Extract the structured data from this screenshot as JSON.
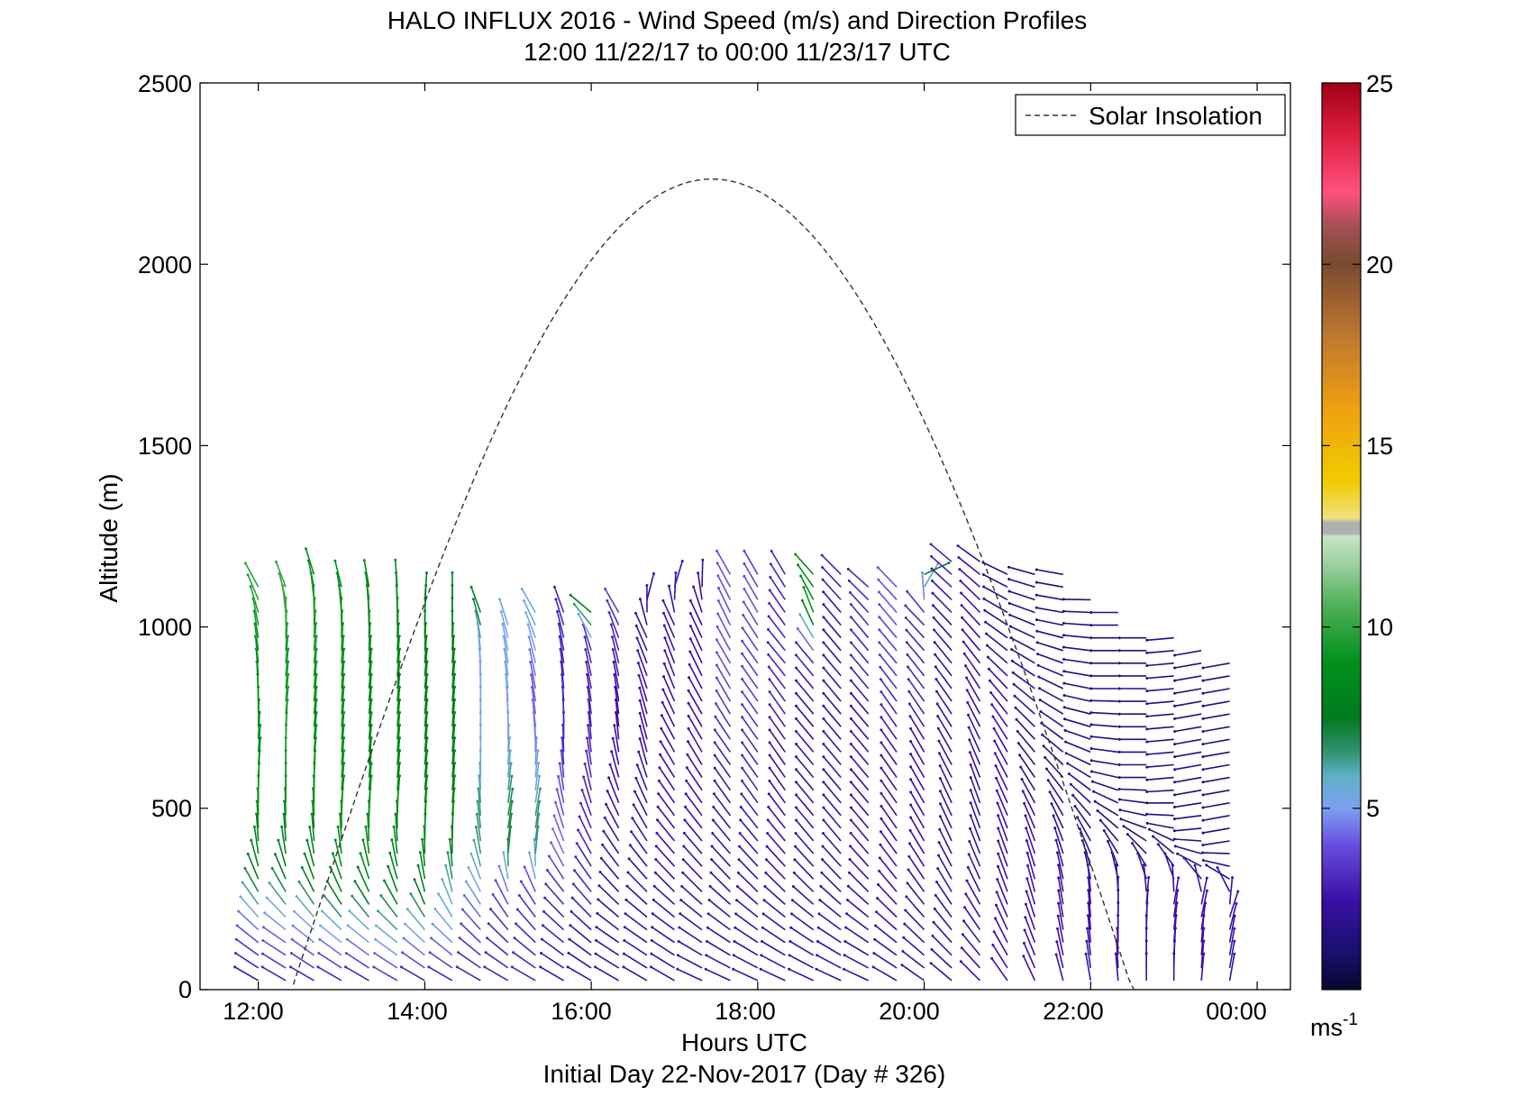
{
  "chart_data": {
    "type": "quiver",
    "title": "HALO INFLUX 2016 - Wind Speed (m/s) and Direction Profiles",
    "subtitle": "12:00 11/22/17 to 00:00 11/23/17  UTC",
    "xlabel": "Hours UTC",
    "xsublabel": "Initial Day 22-Nov-2017 (Day # 326)",
    "ylabel": "Altitude (m)",
    "xlim": [
      11.3,
      24.4
    ],
    "ylim": [
      0,
      2500
    ],
    "xticks": [
      12,
      14,
      16,
      18,
      20,
      22,
      24
    ],
    "xtick_labels": [
      "12:00",
      "14:00",
      "16:00",
      "18:00",
      "20:00",
      "22:00",
      "00:00"
    ],
    "yticks": [
      0,
      500,
      1000,
      1500,
      2000,
      2500
    ],
    "ytick_labels": [
      "0",
      "500",
      "1000",
      "1500",
      "2000",
      "2500"
    ],
    "legend": {
      "entries": [
        "Solar Insolation"
      ],
      "placement": "top-right",
      "style": "dashed"
    },
    "colorbar": {
      "range": [
        0,
        25
      ],
      "ticks": [
        5,
        10,
        15,
        20,
        25
      ],
      "tick_labels": [
        "5",
        "10",
        "15",
        "20",
        "25"
      ],
      "unit_label": "ms",
      "unit_exponent": "-1"
    },
    "solar_insolation": {
      "rise_hour": 12.42,
      "set_hour": 22.52,
      "peak_hour": 17.45,
      "peak_altitude": 2235
    },
    "wind_profiles": {
      "hours": [
        12.0,
        12.33,
        12.67,
        13.0,
        13.33,
        13.67,
        14.0,
        14.33,
        14.67,
        15.0,
        15.33,
        15.67,
        16.0,
        16.33,
        16.67,
        17.0,
        17.33,
        17.67,
        18.0,
        18.33,
        18.67,
        19.0,
        19.33,
        19.67,
        20.0,
        20.33,
        20.67,
        21.0,
        21.33,
        21.67,
        22.0,
        22.33,
        22.67,
        23.0,
        23.33,
        23.67
      ],
      "top_altitudes": [
        1120,
        1130,
        1160,
        1120,
        1110,
        1130,
        1100,
        1090,
        1040,
        1030,
        1040,
        1040,
        1040,
        1040,
        1100,
        1130,
        1140,
        1150,
        1160,
        1160,
        1160,
        1150,
        1130,
        1140,
        1160,
        1180,
        1190,
        1170,
        1160,
        1150,
        1100,
        1060,
        1000,
        1000,
        950,
        900
      ],
      "speeds_ms": [
        [
          2.5,
          4.0,
          7.0,
          8.5,
          9.0,
          9.0,
          9.0,
          9.0,
          9.5,
          10.0
        ],
        [
          3.0,
          4.5,
          7.0,
          8.5,
          9.0,
          9.5,
          9.5,
          9.5,
          10.0,
          10.0
        ],
        [
          3.0,
          5.0,
          7.5,
          8.5,
          8.5,
          9.0,
          9.0,
          9.5,
          9.5,
          9.0
        ],
        [
          3.0,
          5.5,
          8.0,
          9.0,
          9.0,
          9.0,
          9.0,
          9.0,
          9.0,
          9.0
        ],
        [
          3.0,
          5.5,
          8.0,
          9.0,
          9.0,
          8.5,
          8.5,
          8.5,
          8.5,
          8.5
        ],
        [
          3.5,
          6.0,
          8.0,
          8.5,
          8.5,
          8.5,
          8.5,
          8.5,
          8.5,
          8.5
        ],
        [
          3.0,
          5.5,
          8.0,
          8.5,
          8.5,
          8.0,
          8.0,
          8.0,
          8.0,
          8.0
        ],
        [
          3.0,
          5.0,
          6.0,
          8.0,
          8.0,
          8.0,
          8.0,
          8.0,
          8.0,
          8.0
        ],
        [
          3.0,
          3.5,
          5.0,
          6.5,
          6.5,
          5.5,
          5.0,
          5.0,
          5.0,
          8.0
        ],
        [
          3.0,
          3.0,
          4.0,
          7.0,
          7.0,
          6.0,
          5.0,
          5.0,
          5.0,
          5.5
        ],
        [
          3.0,
          3.0,
          3.5,
          6.5,
          6.5,
          5.0,
          4.5,
          4.0,
          5.0,
          5.5
        ],
        [
          2.5,
          3.0,
          3.0,
          4.5,
          4.0,
          3.5,
          3.0,
          3.0,
          3.0,
          3.0
        ],
        [
          2.5,
          2.5,
          3.0,
          3.0,
          3.0,
          3.0,
          3.0,
          3.0,
          3.0,
          8.0
        ],
        [
          2.5,
          2.5,
          2.5,
          2.5,
          2.5,
          2.5,
          2.5,
          2.5,
          3.0,
          3.5
        ],
        [
          2.5,
          2.5,
          2.5,
          2.5,
          2.5,
          2.5,
          2.5,
          2.5,
          2.5,
          2.5
        ],
        [
          2.5,
          2.5,
          2.5,
          2.5,
          2.5,
          2.5,
          2.5,
          2.5,
          2.5,
          2.5
        ],
        [
          2.5,
          2.5,
          2.5,
          2.5,
          2.5,
          2.5,
          2.5,
          2.5,
          2.5,
          2.5
        ],
        [
          2.5,
          2.5,
          2.5,
          2.5,
          2.5,
          3.0,
          3.5,
          4.0,
          4.0,
          4.0
        ],
        [
          2.5,
          2.5,
          2.5,
          2.5,
          3.0,
          3.0,
          3.5,
          3.5,
          4.0,
          3.5
        ],
        [
          2.5,
          2.5,
          2.5,
          2.5,
          2.5,
          2.5,
          3.0,
          3.0,
          3.0,
          3.0
        ],
        [
          2.5,
          2.5,
          2.5,
          2.5,
          2.5,
          2.5,
          2.5,
          3.0,
          9.0,
          9.0
        ],
        [
          2.5,
          2.5,
          2.5,
          2.5,
          2.5,
          2.5,
          2.5,
          2.5,
          2.5,
          3.0
        ],
        [
          2.5,
          2.5,
          2.5,
          2.5,
          2.5,
          2.5,
          2.5,
          3.0,
          3.0,
          3.0
        ],
        [
          2.5,
          2.5,
          2.5,
          2.5,
          2.5,
          2.5,
          3.0,
          3.5,
          4.0,
          4.0
        ],
        [
          2.5,
          2.5,
          2.5,
          2.5,
          2.5,
          2.5,
          3.0,
          3.0,
          3.0,
          8.0
        ],
        [
          2.5,
          2.5,
          2.5,
          2.5,
          2.5,
          2.5,
          2.5,
          2.5,
          2.5,
          3.0
        ],
        [
          2.5,
          2.5,
          2.5,
          2.5,
          2.5,
          2.5,
          2.5,
          2.5,
          2.5,
          2.5
        ],
        [
          2.5,
          2.5,
          2.5,
          2.5,
          2.5,
          2.5,
          2.5,
          2.0,
          2.0,
          2.0
        ],
        [
          2.5,
          2.5,
          2.5,
          2.5,
          2.0,
          2.0,
          2.0,
          2.0,
          1.5,
          1.5
        ],
        [
          2.5,
          2.5,
          2.5,
          2.0,
          2.0,
          2.0,
          2.0,
          1.5,
          1.5,
          1.5
        ],
        [
          2.5,
          2.5,
          2.5,
          2.0,
          2.0,
          1.5,
          1.5,
          1.5,
          1.5,
          1.5
        ],
        [
          2.5,
          2.5,
          2.5,
          2.0,
          1.5,
          1.5,
          1.5,
          1.5,
          1.5,
          1.5
        ],
        [
          2.5,
          2.5,
          2.5,
          2.0,
          1.5,
          1.5,
          1.5,
          1.5,
          1.5,
          1.5
        ],
        [
          2.5,
          2.5,
          2.5,
          2.0,
          1.5,
          1.5,
          1.5,
          1.5,
          1.5,
          1.5
        ],
        [
          2.5,
          2.5,
          2.5,
          2.0,
          1.5,
          1.5,
          1.5,
          1.5,
          1.5,
          1.5
        ],
        [
          2.5,
          2.5,
          2.5,
          2.0,
          1.5,
          1.5,
          1.5,
          1.5,
          1.5,
          1.5
        ]
      ],
      "directions_deg": [
        [
          300,
          310,
          330,
          355,
          0,
          5,
          0,
          355,
          350,
          330
        ],
        [
          300,
          305,
          330,
          355,
          0,
          0,
          5,
          5,
          0,
          335
        ],
        [
          300,
          310,
          335,
          355,
          0,
          5,
          5,
          5,
          0,
          340
        ],
        [
          300,
          310,
          335,
          355,
          5,
          5,
          5,
          5,
          0,
          345
        ],
        [
          300,
          310,
          335,
          355,
          5,
          5,
          5,
          5,
          0,
          350
        ],
        [
          300,
          310,
          340,
          355,
          5,
          5,
          5,
          5,
          0,
          355
        ],
        [
          300,
          315,
          345,
          0,
          5,
          5,
          5,
          5,
          0,
          5
        ],
        [
          300,
          315,
          345,
          0,
          5,
          5,
          5,
          5,
          0,
          0
        ],
        [
          300,
          315,
          330,
          350,
          355,
          0,
          0,
          0,
          355,
          340
        ],
        [
          300,
          315,
          335,
          5,
          10,
          5,
          0,
          355,
          350,
          340
        ],
        [
          300,
          315,
          330,
          5,
          10,
          5,
          355,
          350,
          345,
          330
        ],
        [
          300,
          310,
          320,
          335,
          345,
          355,
          0,
          355,
          350,
          340
        ],
        [
          300,
          310,
          320,
          330,
          340,
          350,
          355,
          350,
          345,
          310
        ],
        [
          300,
          305,
          315,
          325,
          335,
          345,
          355,
          350,
          345,
          330
        ],
        [
          300,
          305,
          315,
          325,
          335,
          345,
          345,
          340,
          335,
          25
        ],
        [
          300,
          305,
          315,
          320,
          325,
          330,
          335,
          340,
          335,
          25
        ],
        [
          295,
          305,
          315,
          320,
          325,
          330,
          330,
          335,
          335,
          10
        ],
        [
          295,
          305,
          315,
          320,
          325,
          325,
          330,
          330,
          335,
          330
        ],
        [
          295,
          305,
          315,
          320,
          325,
          325,
          325,
          325,
          330,
          330
        ],
        [
          295,
          305,
          315,
          320,
          325,
          325,
          325,
          320,
          325,
          330
        ],
        [
          295,
          305,
          315,
          320,
          320,
          320,
          320,
          320,
          340,
          315
        ],
        [
          295,
          305,
          315,
          320,
          320,
          320,
          320,
          320,
          320,
          315
        ],
        [
          295,
          305,
          315,
          320,
          320,
          320,
          320,
          320,
          320,
          310
        ],
        [
          300,
          310,
          320,
          325,
          325,
          325,
          325,
          320,
          320,
          315
        ],
        [
          305,
          315,
          325,
          330,
          330,
          330,
          325,
          320,
          315,
          80
        ],
        [
          310,
          320,
          330,
          335,
          335,
          330,
          325,
          320,
          315,
          310
        ],
        [
          315,
          325,
          335,
          340,
          340,
          335,
          330,
          320,
          315,
          305
        ],
        [
          325,
          335,
          340,
          340,
          335,
          330,
          320,
          310,
          300,
          295
        ],
        [
          335,
          340,
          345,
          340,
          330,
          320,
          310,
          300,
          290,
          285
        ],
        [
          345,
          350,
          350,
          340,
          325,
          310,
          300,
          290,
          280,
          280
        ],
        [
          350,
          355,
          355,
          335,
          315,
          295,
          285,
          280,
          275,
          270
        ],
        [
          355,
          0,
          0,
          330,
          300,
          280,
          275,
          270,
          270,
          270
        ],
        [
          0,
          0,
          5,
          325,
          285,
          270,
          270,
          270,
          270,
          270
        ],
        [
          0,
          5,
          10,
          320,
          275,
          265,
          265,
          265,
          265,
          265
        ],
        [
          5,
          5,
          15,
          300,
          265,
          260,
          260,
          260,
          260,
          260
        ],
        [
          10,
          10,
          20,
          290,
          260,
          260,
          260,
          260,
          260,
          260
        ]
      ]
    }
  }
}
